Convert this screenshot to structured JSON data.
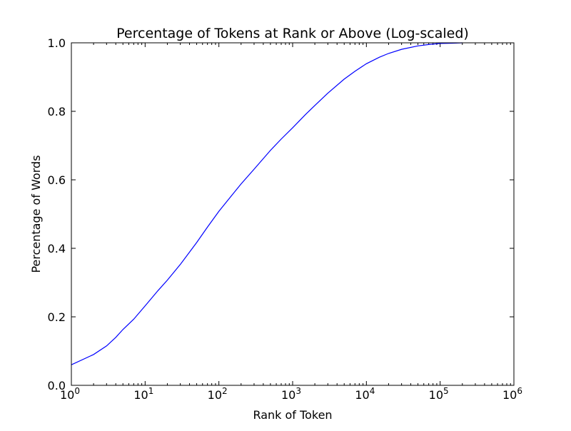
{
  "chart_data": {
    "type": "line",
    "title": "Percentage of Tokens at Rank or Above (Log-scaled)",
    "xlabel": "Rank of Token",
    "ylabel": "Percentage of Words",
    "x_scale": "log",
    "xlim": [
      1,
      1000000
    ],
    "ylim": [
      0.0,
      1.0
    ],
    "grid": false,
    "x_ticks": [
      {
        "base": "10",
        "exp": "0",
        "value": 1
      },
      {
        "base": "10",
        "exp": "1",
        "value": 10
      },
      {
        "base": "10",
        "exp": "2",
        "value": 100
      },
      {
        "base": "10",
        "exp": "3",
        "value": 1000
      },
      {
        "base": "10",
        "exp": "4",
        "value": 10000
      },
      {
        "base": "10",
        "exp": "5",
        "value": 100000
      },
      {
        "base": "10",
        "exp": "6",
        "value": 1000000
      }
    ],
    "y_ticks": [
      "0.0",
      "0.2",
      "0.4",
      "0.6",
      "0.8",
      "1.0"
    ],
    "series": [
      {
        "color": "#0000ff",
        "x": [
          1,
          2,
          3,
          4,
          5,
          7,
          10,
          15,
          20,
          30,
          50,
          70,
          100,
          150,
          200,
          300,
          500,
          700,
          1000,
          1500,
          2000,
          3000,
          5000,
          7000,
          10000,
          15000,
          20000,
          30000,
          50000,
          70000,
          100000,
          150000,
          200000
        ],
        "y": [
          0.06,
          0.09,
          0.115,
          0.14,
          0.163,
          0.193,
          0.232,
          0.277,
          0.307,
          0.353,
          0.417,
          0.462,
          0.508,
          0.555,
          0.588,
          0.631,
          0.686,
          0.719,
          0.752,
          0.791,
          0.817,
          0.853,
          0.894,
          0.917,
          0.939,
          0.958,
          0.969,
          0.981,
          0.991,
          0.995,
          0.998,
          0.999,
          1.0
        ]
      }
    ]
  }
}
